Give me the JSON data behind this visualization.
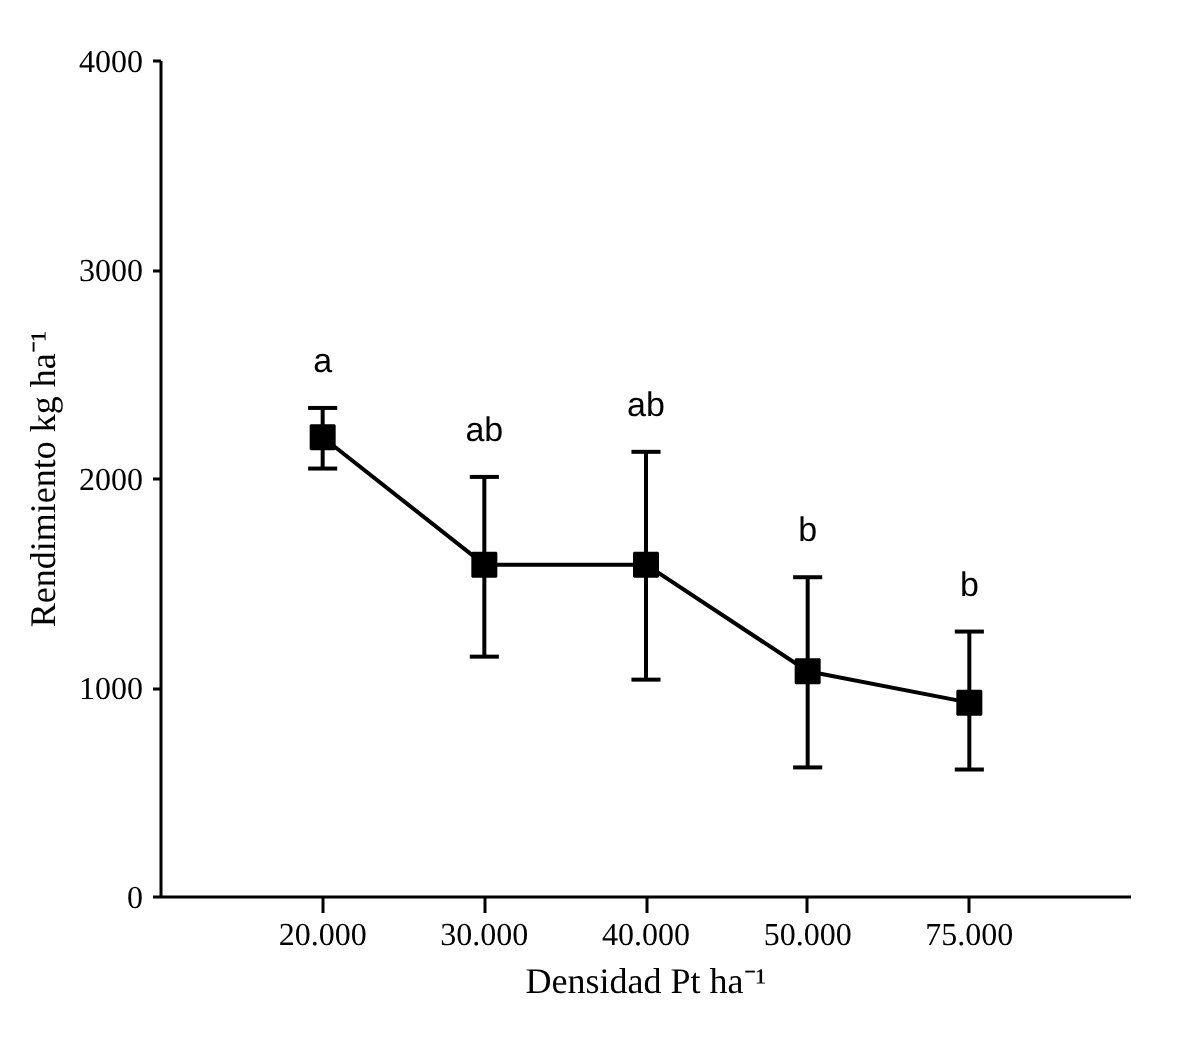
{
  "chart_data": {
    "type": "line",
    "xlabel": "Densidad Pt ha⁻¹",
    "ylabel": "Rendimiento kg ha⁻¹",
    "categories": [
      "20.000",
      "30.000",
      "40.000",
      "50.000",
      "75.000"
    ],
    "series": [
      {
        "color": "#000000",
        "values": [
          2200,
          1590,
          1590,
          1080,
          930
        ],
        "errors": [
          [
            2050,
            2340
          ],
          [
            1150,
            2010
          ],
          [
            1040,
            2130
          ],
          [
            620,
            1530
          ],
          [
            610,
            1270
          ]
        ]
      }
    ],
    "ylim": [
      0,
      4000
    ],
    "yticks": [
      0,
      1000,
      2000,
      3000,
      4000
    ],
    "marker": "square",
    "line_style": "solid",
    "grid": false,
    "annotations": [
      "a",
      "ab",
      "ab",
      "b",
      "b"
    ]
  }
}
